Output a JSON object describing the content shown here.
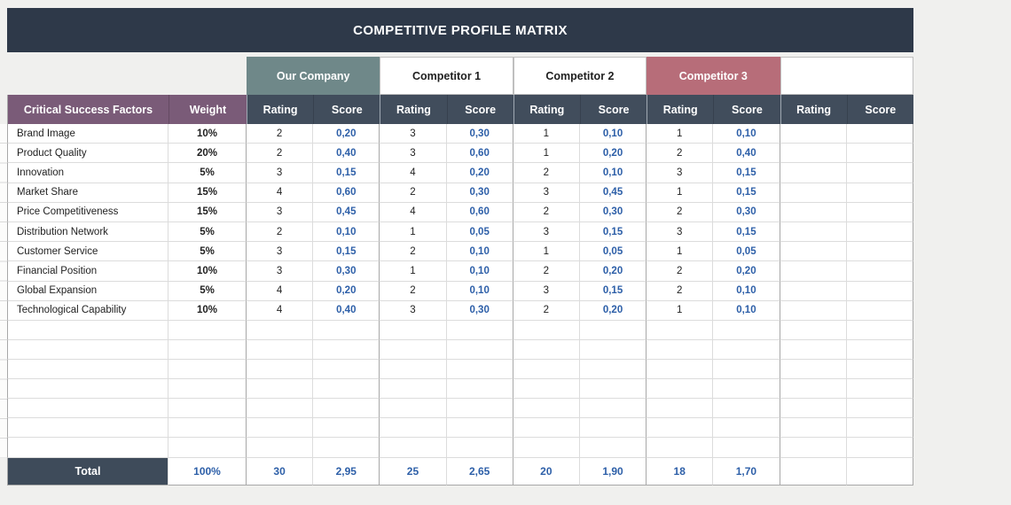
{
  "title": "COMPETITIVE PROFILE MATRIX",
  "colors": {
    "page_bg": "#f0f0ee",
    "title_bar": "#2e3949",
    "header_slate": "#414d5c",
    "purple": "#7a5b78",
    "our_company": "#6f8889",
    "competitor3": "#b76d79",
    "total_bg": "#3e4b5a",
    "score_blue": "#2d5fa8"
  },
  "columns": {
    "factors_header": "Critical Success Factors",
    "weight_header": "Weight",
    "rating_header": "Rating",
    "score_header": "Score"
  },
  "groups": [
    {
      "label": "Our Company",
      "style": "ourcompany"
    },
    {
      "label": "Competitor 1",
      "style": "plain"
    },
    {
      "label": "Competitor 2",
      "style": "plain"
    },
    {
      "label": "Competitor 3",
      "style": "competitor3"
    },
    {
      "label": "",
      "style": "plain"
    }
  ],
  "rows": [
    {
      "factor": "Brand Image",
      "weight": "10%",
      "ratings": [
        "2",
        "3",
        "1",
        "1",
        ""
      ],
      "scores": [
        "0,20",
        "0,30",
        "0,10",
        "0,10",
        ""
      ]
    },
    {
      "factor": "Product Quality",
      "weight": "20%",
      "ratings": [
        "2",
        "3",
        "1",
        "2",
        ""
      ],
      "scores": [
        "0,40",
        "0,60",
        "0,20",
        "0,40",
        ""
      ]
    },
    {
      "factor": "Innovation",
      "weight": "5%",
      "ratings": [
        "3",
        "4",
        "2",
        "3",
        ""
      ],
      "scores": [
        "0,15",
        "0,20",
        "0,10",
        "0,15",
        ""
      ]
    },
    {
      "factor": "Market Share",
      "weight": "15%",
      "ratings": [
        "4",
        "2",
        "3",
        "1",
        ""
      ],
      "scores": [
        "0,60",
        "0,30",
        "0,45",
        "0,15",
        ""
      ]
    },
    {
      "factor": "Price Competitiveness",
      "weight": "15%",
      "ratings": [
        "3",
        "4",
        "2",
        "2",
        ""
      ],
      "scores": [
        "0,45",
        "0,60",
        "0,30",
        "0,30",
        ""
      ]
    },
    {
      "factor": "Distribution Network",
      "weight": "5%",
      "ratings": [
        "2",
        "1",
        "3",
        "3",
        ""
      ],
      "scores": [
        "0,10",
        "0,05",
        "0,15",
        "0,15",
        ""
      ]
    },
    {
      "factor": "Customer Service",
      "weight": "5%",
      "ratings": [
        "3",
        "2",
        "1",
        "1",
        ""
      ],
      "scores": [
        "0,15",
        "0,10",
        "0,05",
        "0,05",
        ""
      ]
    },
    {
      "factor": "Financial Position",
      "weight": "10%",
      "ratings": [
        "3",
        "1",
        "2",
        "2",
        ""
      ],
      "scores": [
        "0,30",
        "0,10",
        "0,20",
        "0,20",
        ""
      ]
    },
    {
      "factor": "Global Expansion",
      "weight": "5%",
      "ratings": [
        "4",
        "2",
        "3",
        "2",
        ""
      ],
      "scores": [
        "0,20",
        "0,10",
        "0,15",
        "0,10",
        ""
      ]
    },
    {
      "factor": "Technological Capability",
      "weight": "10%",
      "ratings": [
        "4",
        "3",
        "2",
        "1",
        ""
      ],
      "scores": [
        "0,40",
        "0,30",
        "0,20",
        "0,10",
        ""
      ]
    }
  ],
  "empty_row_count": 7,
  "total": {
    "label": "Total",
    "weight": "100%",
    "ratings": [
      "30",
      "25",
      "20",
      "18",
      ""
    ],
    "scores": [
      "2,95",
      "2,65",
      "1,90",
      "1,70",
      ""
    ]
  }
}
